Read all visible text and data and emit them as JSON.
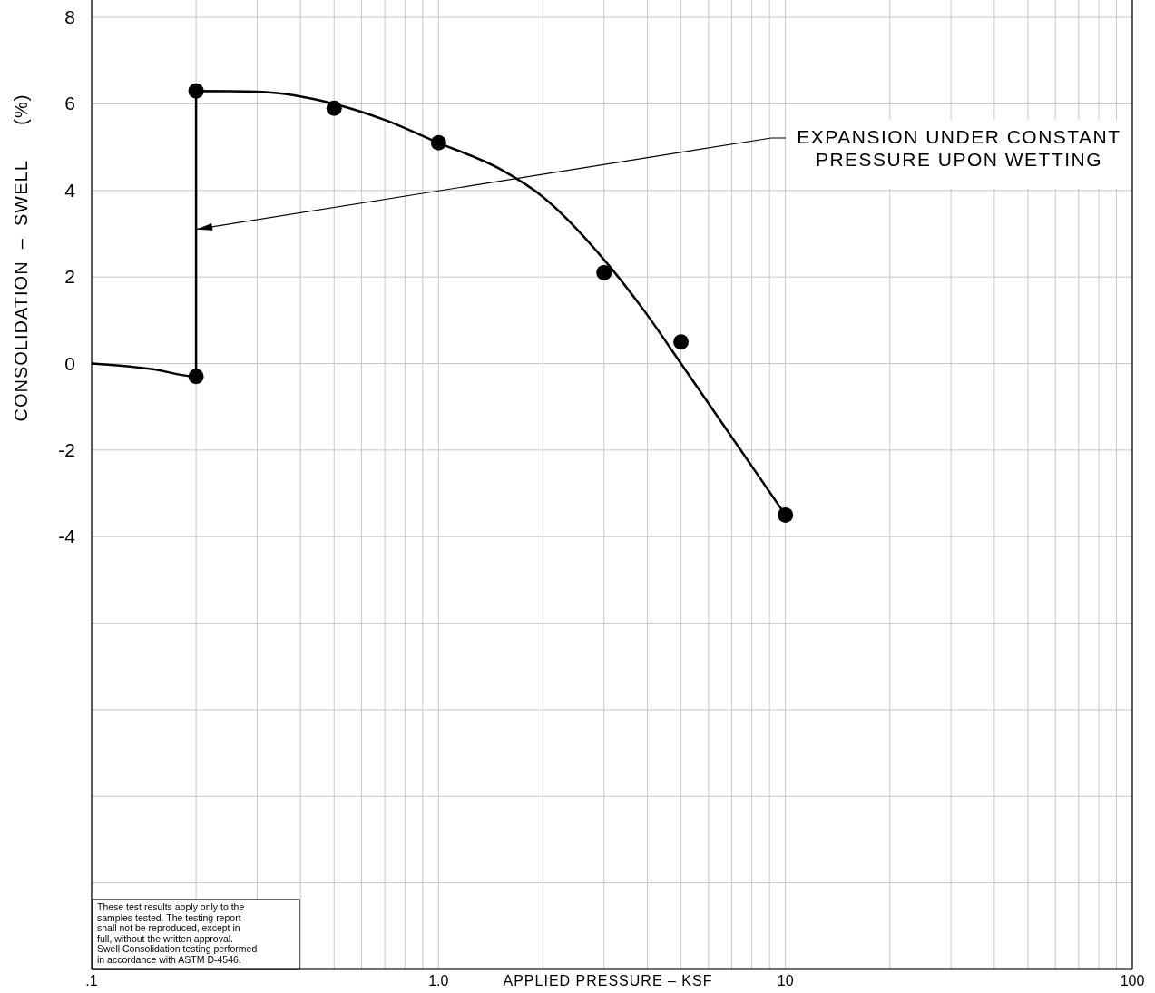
{
  "chart_data": {
    "type": "line",
    "xlabel": "APPLIED PRESSURE – KSF",
    "ylabel": "CONSOLIDATION  –  SWELL      (%)",
    "log": "x",
    "grid": true,
    "xlim": [
      0.1,
      100
    ],
    "ylim": [
      -14,
      8.4
    ],
    "xticks": [
      {
        "value": 0.1,
        "label": ".1"
      },
      {
        "value": 0.2,
        "label": null
      },
      {
        "value": 0.3,
        "label": null
      },
      {
        "value": 0.4,
        "label": null
      },
      {
        "value": 0.5,
        "label": null
      },
      {
        "value": 0.6,
        "label": null
      },
      {
        "value": 0.7,
        "label": null
      },
      {
        "value": 0.8,
        "label": null
      },
      {
        "value": 0.9,
        "label": null
      },
      {
        "value": 1,
        "label": "1.0"
      },
      {
        "value": 2,
        "label": null
      },
      {
        "value": 3,
        "label": null
      },
      {
        "value": 4,
        "label": null
      },
      {
        "value": 5,
        "label": null
      },
      {
        "value": 6,
        "label": null
      },
      {
        "value": 7,
        "label": null
      },
      {
        "value": 8,
        "label": null
      },
      {
        "value": 9,
        "label": null
      },
      10,
      {
        "value": 20,
        "label": null
      },
      {
        "value": 30,
        "label": null
      },
      {
        "value": 40,
        "label": null
      },
      {
        "value": 50,
        "label": null
      },
      {
        "value": 60,
        "label": null
      },
      {
        "value": 70,
        "label": null
      },
      {
        "value": 80,
        "label": null
      },
      {
        "value": 90,
        "label": null
      },
      100
    ],
    "yticks": [
      {
        "value": -14,
        "label": null
      },
      {
        "value": -12,
        "label": null
      },
      {
        "value": -10,
        "label": null
      },
      {
        "value": -8,
        "label": null
      },
      {
        "value": -6,
        "label": null
      },
      -4,
      -2,
      0,
      2,
      4,
      6,
      8
    ],
    "series": [
      {
        "color": "#000000",
        "marker": "none",
        "x": [
          0.1,
          0.15,
          0.2,
          0.2,
          0.3,
          0.5,
          0.7,
          1.0,
          1.5,
          2.0,
          3.0,
          3.9,
          5.0,
          10
        ],
        "values": [
          0,
          -0.13,
          -0.3,
          6.3,
          6.28,
          6.0,
          5.63,
          5.1,
          4.5,
          3.85,
          2.4,
          1.24,
          0,
          -3.5
        ]
      },
      {
        "type": "scatter",
        "color": "#000000",
        "marker": "circle",
        "x": [
          0.2,
          0.2,
          0.5,
          1.0,
          3.0,
          5.0,
          10
        ],
        "values": [
          -0.3,
          6.3,
          5.9,
          5.1,
          2.1,
          0.5,
          -3.5
        ]
      }
    ],
    "annotations": [
      {
        "text": "EXPANSION UNDER CONSTANT\nPRESSURE UPON WETTING",
        "x": 0.2,
        "y": 3.1
      },
      "These test results apply only to the samples tested. The testing report shall not be reproduced, except in full, without the written approval. Swell Consolidation testing performed in accordance with ASTM D-4546."
    ]
  }
}
